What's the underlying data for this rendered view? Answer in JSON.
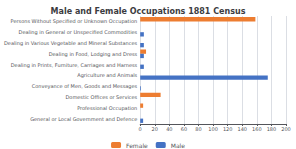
{
  "chart_data": {
    "type": "bar",
    "orientation": "horizontal",
    "title": "Male and Female Occupations 1881 Census",
    "categories": [
      "Persons Without Specified or Unknown Occupation",
      "Dealing in General or Unspecified Commodities",
      "Dealing in Various Vegetable and Mineral Substances",
      "Dealing in Food, Lodging and Dress",
      "Dealing in Prints, Furniture, Carriages and Harness",
      "Agriculture and Animals",
      "Conveyance of Men, Goods and Messages",
      "Domestic Offices or Services",
      "Professional Occupation",
      "General or Local Government and Defence"
    ],
    "series": [
      {
        "name": "Female",
        "color": "#ED7D31",
        "values": [
          158,
          0,
          0,
          8,
          0,
          0,
          0,
          28,
          4,
          0
        ]
      },
      {
        "name": "Male",
        "color": "#4472C4",
        "values": [
          0,
          5,
          5,
          5,
          5,
          175,
          1,
          0,
          0,
          4
        ]
      }
    ],
    "xlim": [
      0,
      200
    ],
    "xticks": [
      0,
      20,
      40,
      60,
      80,
      100,
      120,
      140,
      160,
      180,
      200
    ],
    "grid": true,
    "legend": "bottom"
  }
}
